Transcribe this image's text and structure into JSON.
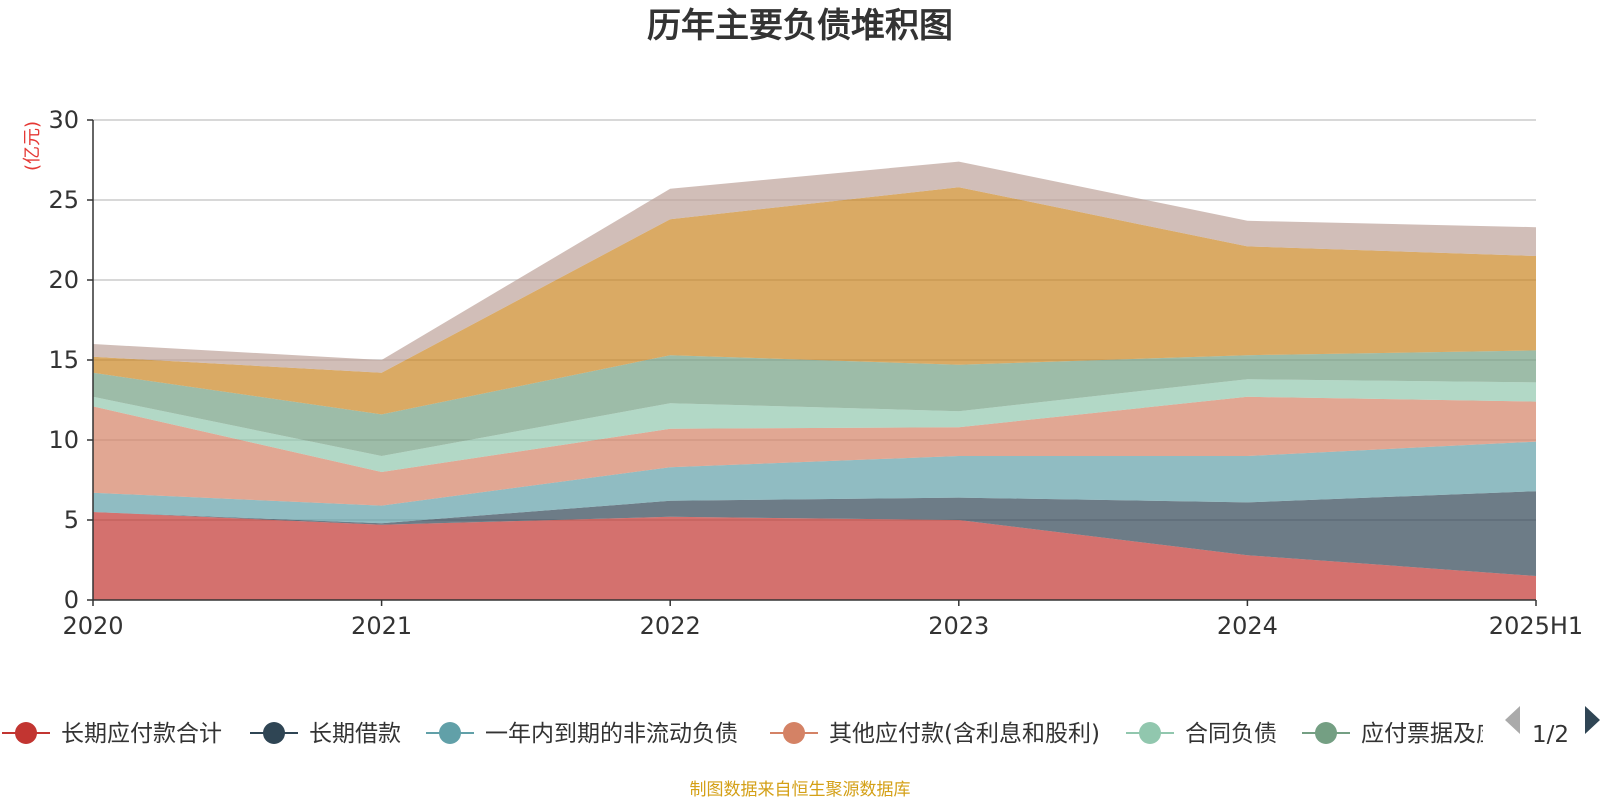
{
  "chart_data": {
    "type": "area",
    "title": "历年主要负债堆积图",
    "unit_label": "(亿元)",
    "x": [
      "2020",
      "2021",
      "2022",
      "2023",
      "2024",
      "2025H1"
    ],
    "ylim": [
      0,
      30
    ],
    "yticks": [
      0,
      5,
      10,
      15,
      20,
      25,
      30
    ],
    "grid": true,
    "stacked": true,
    "series": [
      {
        "name": "长期应付款合计",
        "color": "#c23531",
        "values": [
          5.5,
          4.7,
          5.2,
          5.0,
          2.8,
          1.5
        ]
      },
      {
        "name": "长期借款",
        "color": "#2f4554",
        "values": [
          0.0,
          0.1,
          1.0,
          1.4,
          3.3,
          5.3
        ]
      },
      {
        "name": "一年内到期的非流动负债",
        "color": "#61a0a8",
        "values": [
          1.2,
          1.1,
          2.1,
          2.6,
          2.9,
          3.1
        ]
      },
      {
        "name": "其他应付款(含利息和股利)",
        "color": "#d48265",
        "values": [
          5.4,
          2.1,
          2.4,
          1.8,
          3.7,
          2.5
        ]
      },
      {
        "name": "合同负债",
        "color": "#91c7ae",
        "values": [
          0.6,
          1.0,
          1.6,
          1.0,
          1.1,
          1.2
        ]
      },
      {
        "name": "应付票据及应付账款",
        "color": "#749f83",
        "values": [
          1.5,
          2.6,
          3.0,
          2.9,
          1.5,
          2.0
        ]
      },
      {
        "name": "",
        "color": "#ca8622",
        "values": [
          1.0,
          2.6,
          8.5,
          11.1,
          6.8,
          5.9
        ]
      },
      {
        "name": "",
        "color": "#bda29a",
        "values": [
          0.8,
          0.8,
          1.9,
          1.6,
          1.6,
          1.8
        ]
      }
    ],
    "legend": {
      "position": "bottom",
      "visible_items": [
        "长期应付款合计",
        "长期借款",
        "一年内到期的非流动负债",
        "其他应付款(含利息和股利)",
        "合同负债",
        "应付票据及应付账款"
      ],
      "page": "1/2"
    },
    "source": "制图数据来自恒生聚源数据库"
  }
}
